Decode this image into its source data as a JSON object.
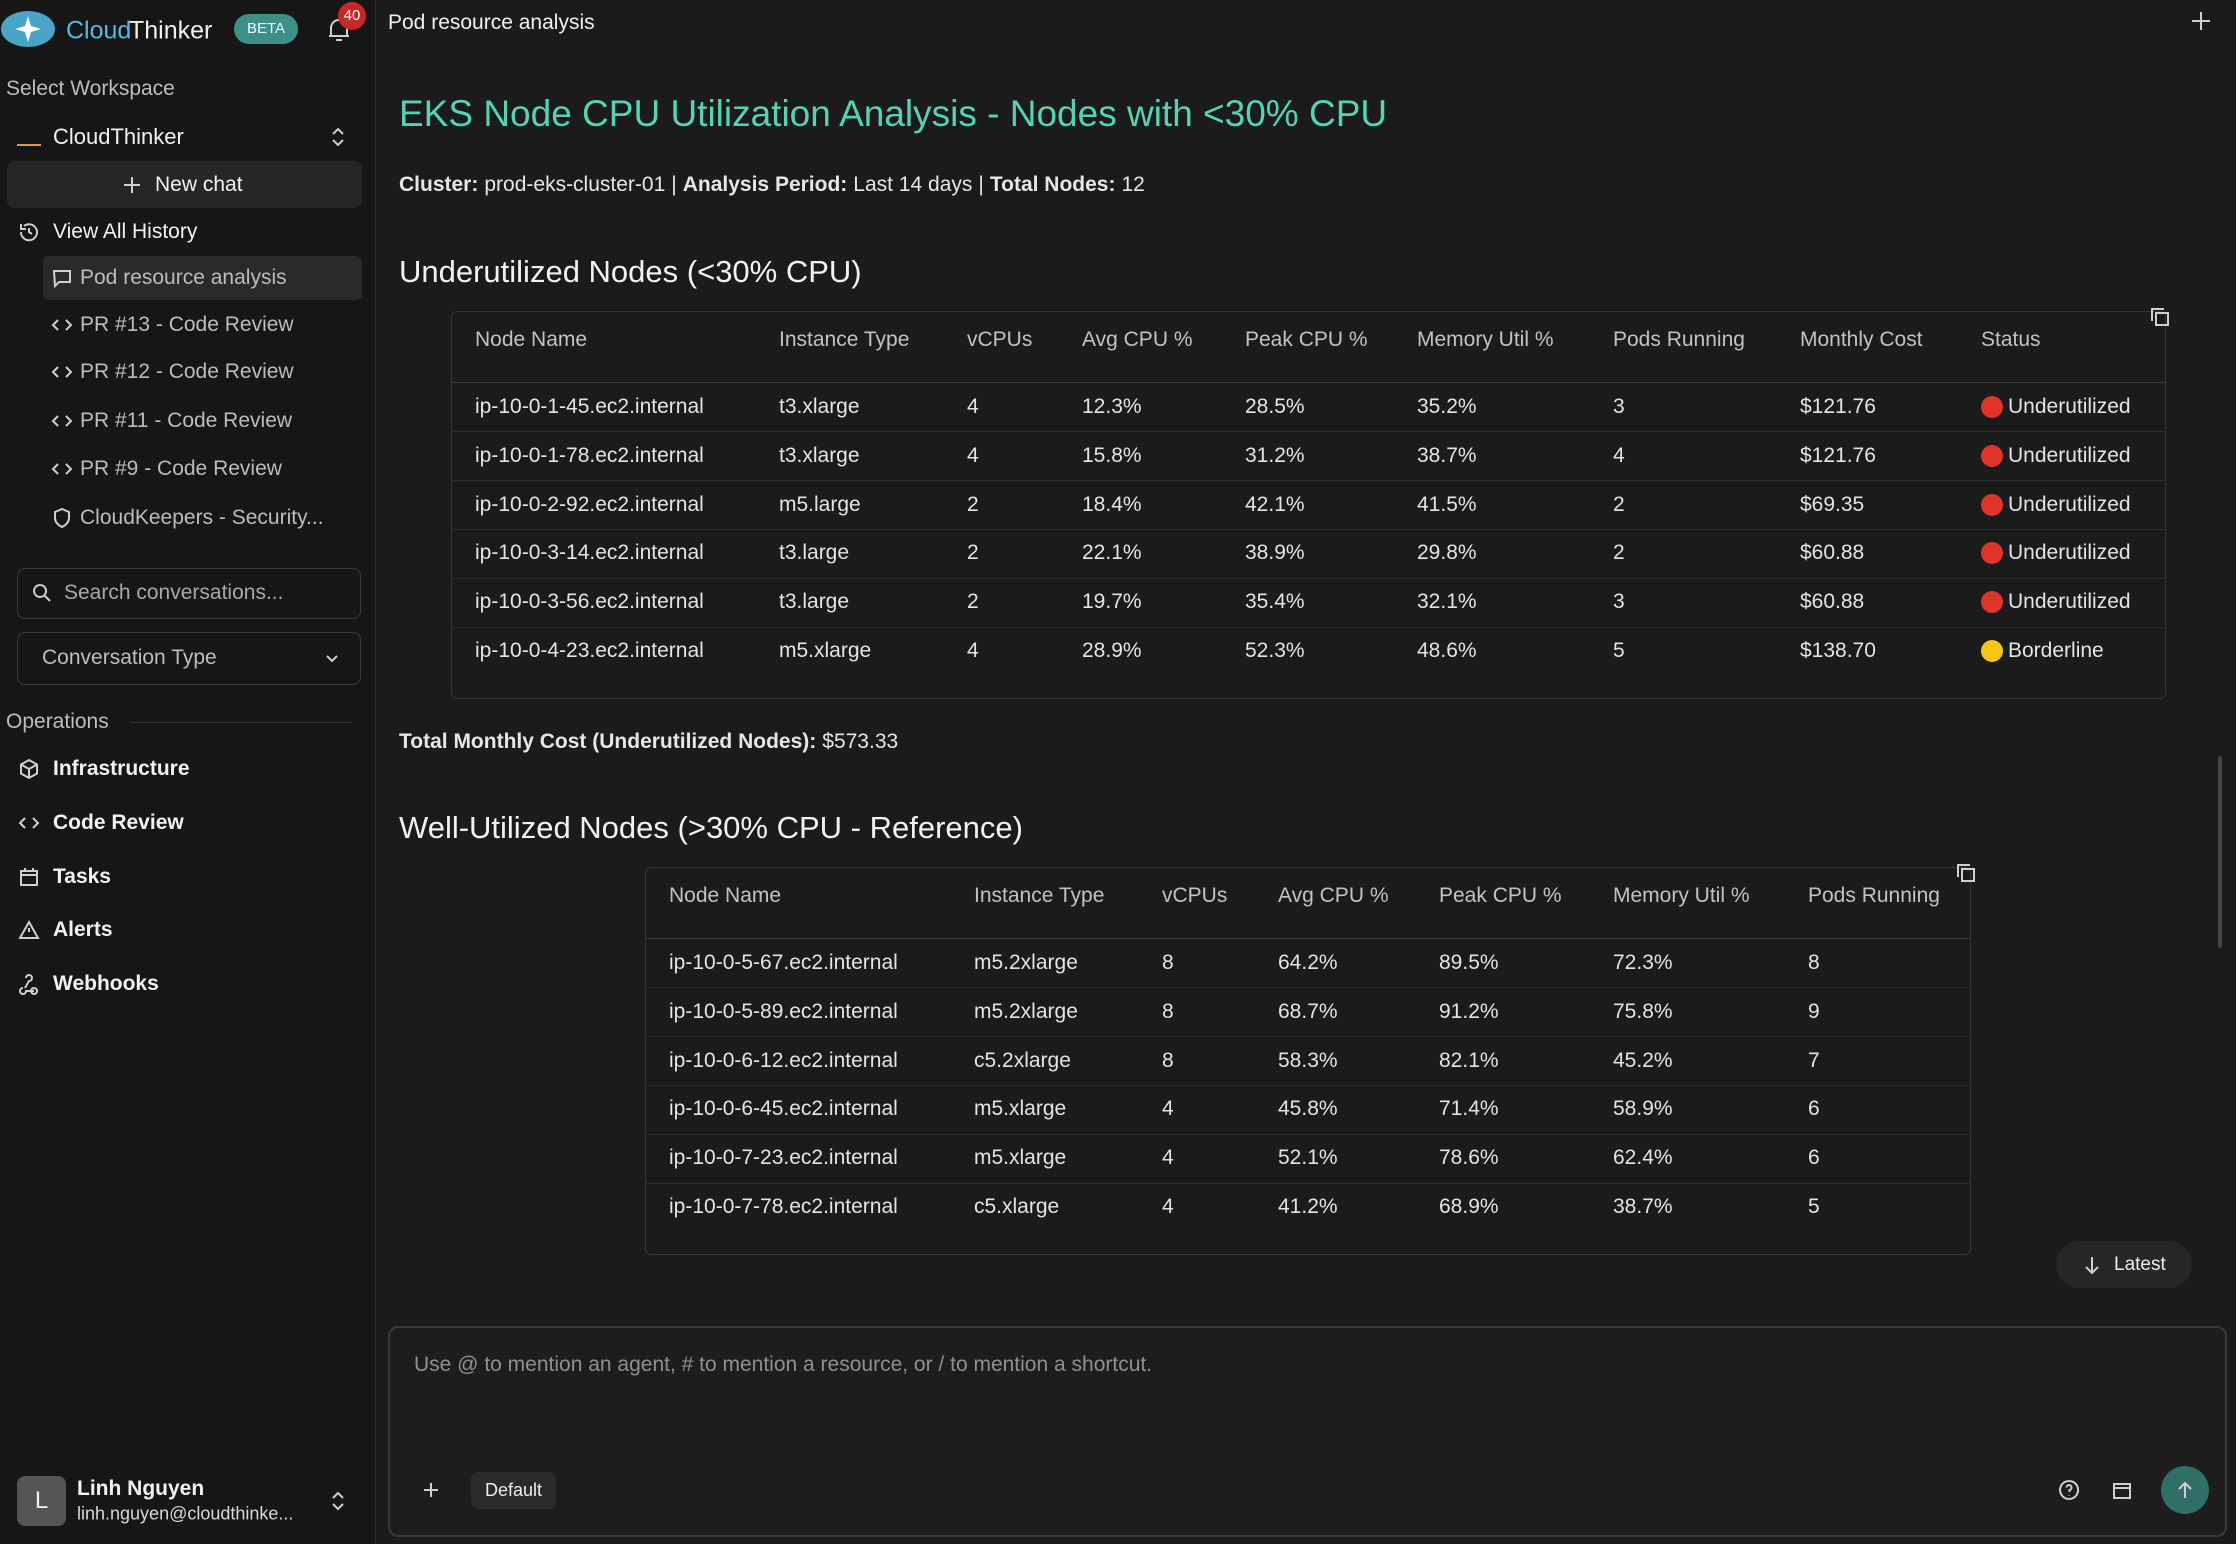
{
  "app": {
    "brand_part1": "Cloud",
    "brand_part2": "Thinker",
    "badge": "BETA",
    "notifications": 40
  },
  "header": {
    "title": "Pod resource analysis"
  },
  "sidebar": {
    "workspace_label": "Select Workspace",
    "workspace": "CloudThinker",
    "new_chat": "New chat",
    "history_link": "View All History",
    "history": [
      "Pod resource analysis",
      "PR #13 - Code Review",
      "PR #12 - Code Review",
      "PR #11 - Code Review",
      "PR #9 - Code Review",
      "CloudKeepers - Security..."
    ],
    "search_placeholder": "Search conversations...",
    "filter": "Conversation Type",
    "section": "Operations",
    "nav": [
      "Infrastructure",
      "Code Review",
      "Tasks",
      "Alerts",
      "Webhooks"
    ],
    "user": {
      "initial": "L",
      "name": "Linh Nguyen",
      "email": "linh.nguyen@cloudthinke..."
    }
  },
  "content": {
    "title": "EKS Node CPU Utilization Analysis - Nodes with <30% CPU",
    "meta": [
      {
        "label": "Cluster:",
        "value": "prod-eks-cluster-01"
      },
      {
        "label": "Analysis Period:",
        "value": "Last 14 days"
      },
      {
        "label": "Total Nodes:",
        "value": 12
      }
    ],
    "separator": "|",
    "table1": {
      "heading": "Underutilized Nodes (<30% CPU)",
      "columns": [
        "Node Name",
        "Instance Type",
        "vCPUs",
        "Avg CPU %",
        "Peak CPU %",
        "Memory Util %",
        "Pods Running",
        "Monthly Cost",
        "Status"
      ],
      "rows": [
        [
          "ip-10-0-1-45.ec2.internal",
          "t3.xlarge",
          "4",
          "12.3%",
          "28.5%",
          "35.2%",
          "3",
          "$121.76",
          "Underutilized"
        ],
        [
          "ip-10-0-1-78.ec2.internal",
          "t3.xlarge",
          "4",
          "15.8%",
          "31.2%",
          "38.7%",
          "4",
          "$121.76",
          "Underutilized"
        ],
        [
          "ip-10-0-2-92.ec2.internal",
          "m5.large",
          "2",
          "18.4%",
          "42.1%",
          "41.5%",
          "2",
          "$69.35",
          "Underutilized"
        ],
        [
          "ip-10-0-3-14.ec2.internal",
          "t3.large",
          "2",
          "22.1%",
          "38.9%",
          "29.8%",
          "2",
          "$60.88",
          "Underutilized"
        ],
        [
          "ip-10-0-3-56.ec2.internal",
          "t3.large",
          "2",
          "19.7%",
          "35.4%",
          "32.1%",
          "3",
          "$60.88",
          "Underutilized"
        ],
        [
          "ip-10-0-4-23.ec2.internal",
          "m5.xlarge",
          "4",
          "28.9%",
          "52.3%",
          "48.6%",
          "5",
          "$138.70",
          "Borderline"
        ]
      ],
      "status_colors": [
        "#e0342b",
        "#e0342b",
        "#e0342b",
        "#e0342b",
        "#e0342b",
        "#f5c518"
      ]
    },
    "total": {
      "label": "Total Monthly Cost (Underutilized Nodes):",
      "value": "$573.33"
    },
    "table2": {
      "heading": "Well-Utilized Nodes (>30% CPU - Reference)",
      "columns": [
        "Node Name",
        "Instance Type",
        "vCPUs",
        "Avg CPU %",
        "Peak CPU %",
        "Memory Util %",
        "Pods Running"
      ],
      "rows": [
        [
          "ip-10-0-5-67.ec2.internal",
          "m5.2xlarge",
          "8",
          "64.2%",
          "89.5%",
          "72.3%",
          "8"
        ],
        [
          "ip-10-0-5-89.ec2.internal",
          "m5.2xlarge",
          "8",
          "68.7%",
          "91.2%",
          "75.8%",
          "9"
        ],
        [
          "ip-10-0-6-12.ec2.internal",
          "c5.2xlarge",
          "8",
          "58.3%",
          "82.1%",
          "45.2%",
          "7"
        ],
        [
          "ip-10-0-6-45.ec2.internal",
          "m5.xlarge",
          "4",
          "45.8%",
          "71.4%",
          "58.9%",
          "6"
        ],
        [
          "ip-10-0-7-23.ec2.internal",
          "m5.xlarge",
          "4",
          "52.1%",
          "78.6%",
          "62.4%",
          "6"
        ],
        [
          "ip-10-0-7-78.ec2.internal",
          "c5.xlarge",
          "4",
          "41.2%",
          "68.9%",
          "38.7%",
          "5"
        ]
      ]
    }
  },
  "latest_button": "Latest",
  "composer": {
    "placeholder": "Use @ to mention an agent, # to mention a resource, or / to mention a shortcut.",
    "mode": "Default"
  }
}
